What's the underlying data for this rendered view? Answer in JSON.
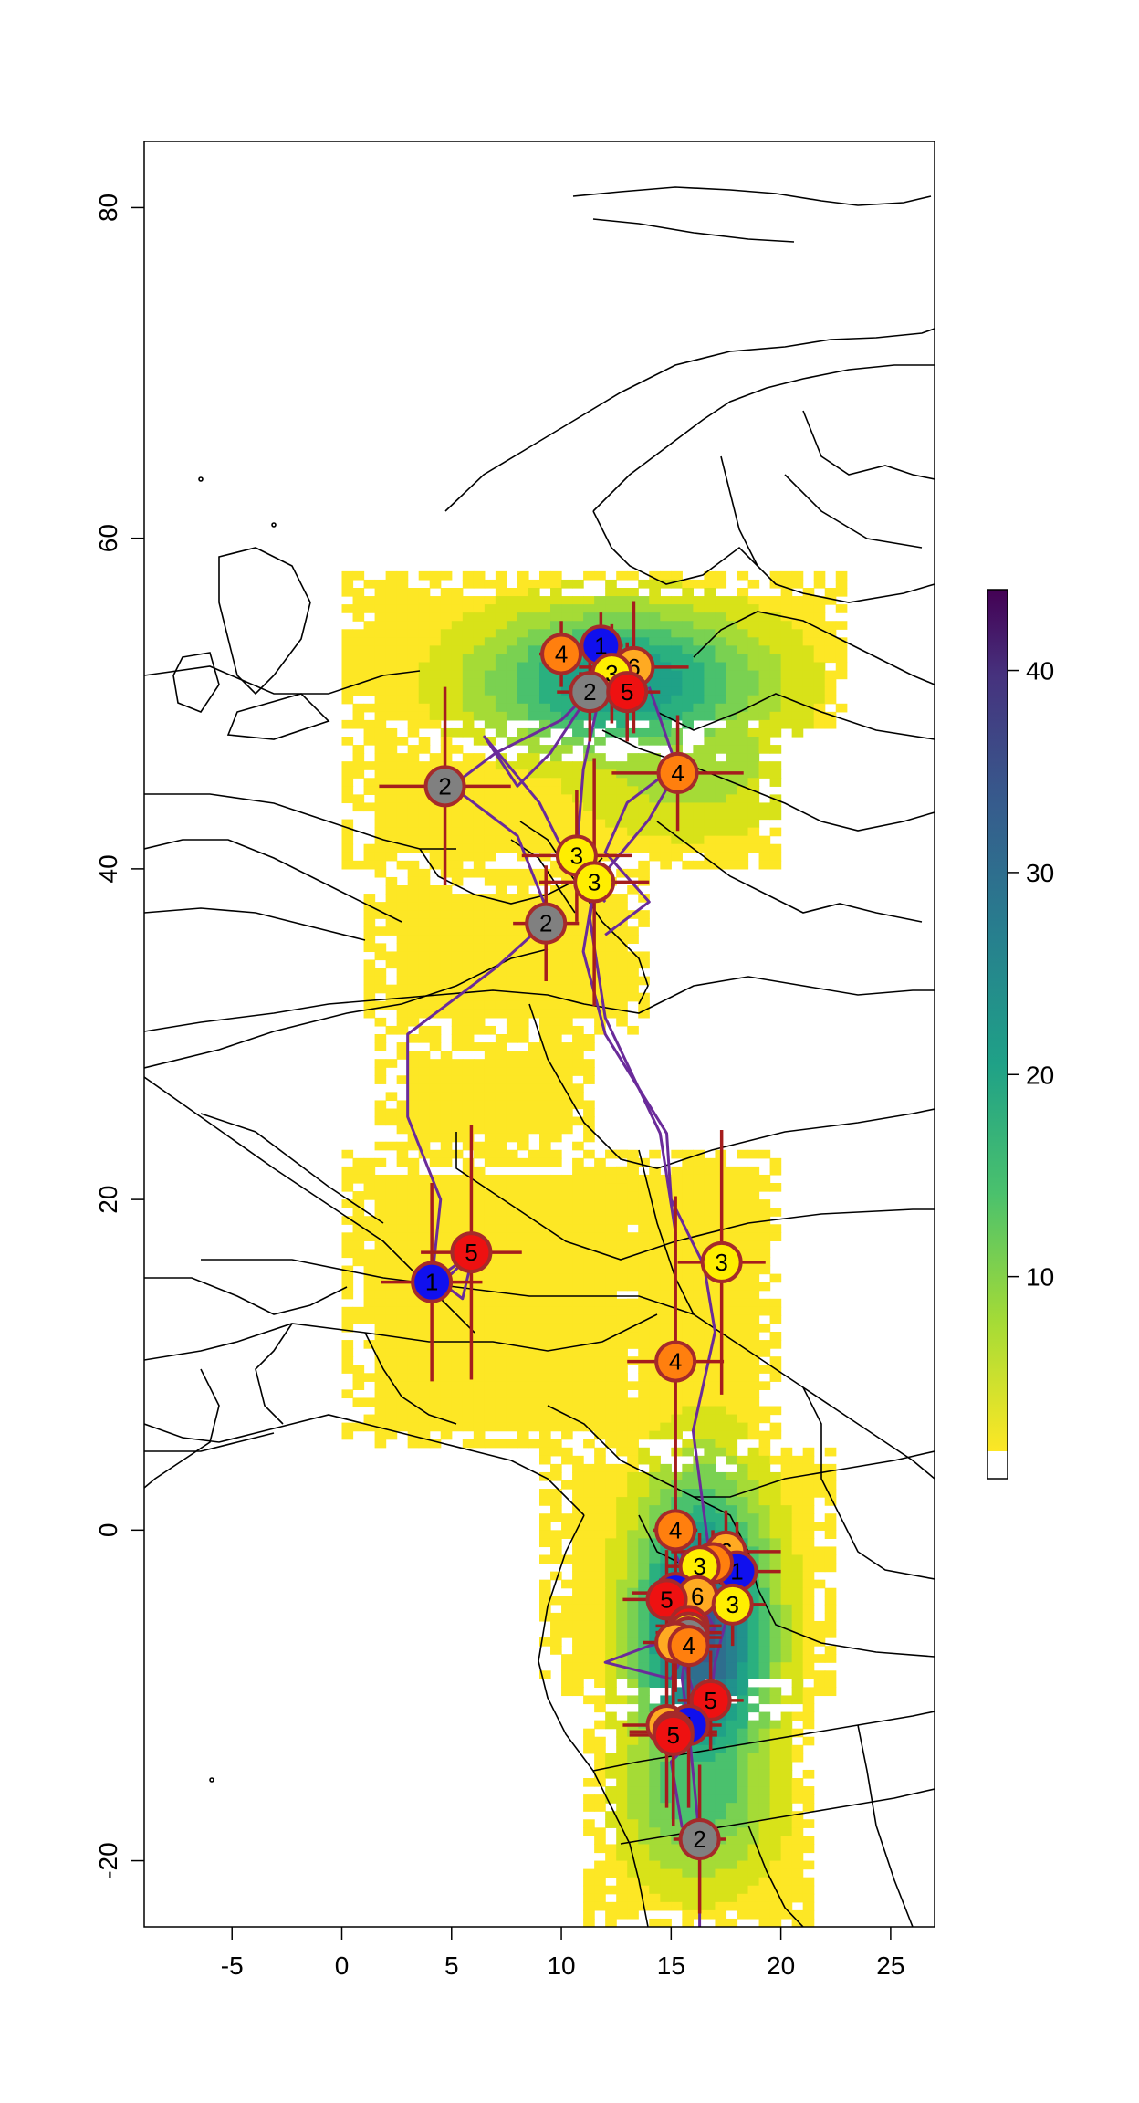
{
  "colors": {
    "track": "#6a2b9a",
    "error_bar": "#a51d1d",
    "marker_outline": "#a52a2a",
    "coast": "#000000",
    "background": "#ffffff"
  },
  "chart_data": {
    "type": "map",
    "xlim": [
      -9,
      27
    ],
    "ylim": [
      -24,
      84
    ],
    "x_ticks": [
      -5,
      0,
      5,
      10,
      15,
      20,
      25
    ],
    "y_ticks": [
      -20,
      0,
      20,
      40,
      60,
      80
    ],
    "legend": {
      "position": "right",
      "min": 0,
      "max": 44,
      "ticks": [
        10,
        20,
        30,
        40
      ],
      "palette": "viridis-reversed"
    },
    "marker_colors": {
      "1": "#1010ee",
      "2": "#808080",
      "3": "#ffee00",
      "4": "#ff7f0e",
      "5": "#ee1111",
      "6": "#ffaa22"
    },
    "stopovers": [
      {
        "label": "4",
        "lon": 10.0,
        "lat": 53.0,
        "xerr": 1.0,
        "yerr": 2.0
      },
      {
        "label": "1",
        "lon": 11.8,
        "lat": 53.5,
        "xerr": 1.0,
        "yerr": 2.0
      },
      {
        "label": "6",
        "lon": 13.3,
        "lat": 52.2,
        "xerr": 2.5,
        "yerr": 4.0
      },
      {
        "label": "3",
        "lon": 12.3,
        "lat": 51.8,
        "xerr": 1.5,
        "yerr": 3.0
      },
      {
        "label": "2",
        "lon": 11.3,
        "lat": 50.7,
        "xerr": 1.5,
        "yerr": 3.0
      },
      {
        "label": "5",
        "lon": 13.0,
        "lat": 50.7,
        "xerr": 1.5,
        "yerr": 3.0
      },
      {
        "label": "4",
        "lon": 15.3,
        "lat": 45.8,
        "xerr": 3.0,
        "yerr": 3.5
      },
      {
        "label": "2",
        "lon": 4.7,
        "lat": 45.0,
        "xerr": 3.0,
        "yerr": 6.0
      },
      {
        "label": "3",
        "lon": 10.7,
        "lat": 40.8,
        "xerr": 2.5,
        "yerr": 4.0
      },
      {
        "label": "3",
        "lon": 11.5,
        "lat": 39.2,
        "xerr": 2.5,
        "yerr": 7.5
      },
      {
        "label": "2",
        "lon": 9.3,
        "lat": 36.7,
        "xerr": 1.5,
        "yerr": 3.5
      },
      {
        "label": "5",
        "lon": 5.9,
        "lat": 16.8,
        "xerr": 2.3,
        "yerr": 7.7
      },
      {
        "label": "1",
        "lon": 4.1,
        "lat": 15.0,
        "xerr": 2.3,
        "yerr": 6.0
      },
      {
        "label": "3",
        "lon": 17.3,
        "lat": 16.2,
        "xerr": 2.0,
        "yerr": 8.0
      },
      {
        "label": "4",
        "lon": 15.2,
        "lat": 10.2,
        "xerr": 2.2,
        "yerr": 10.0
      },
      {
        "label": "4",
        "lon": 15.2,
        "lat": 0.0,
        "xerr": 1.0,
        "yerr": 1.5
      },
      {
        "label": "6",
        "lon": 17.5,
        "lat": -1.3,
        "xerr": 2.5,
        "yerr": 2.5
      },
      {
        "label": "1",
        "lon": 18.0,
        "lat": -2.5,
        "xerr": 2.0,
        "yerr": 3.0
      },
      {
        "label": "4",
        "lon": 16.9,
        "lat": -2.0,
        "xerr": 1.5,
        "yerr": 2.0
      },
      {
        "label": "3",
        "lon": 16.3,
        "lat": -2.2,
        "xerr": 1.5,
        "yerr": 2.0
      },
      {
        "label": "1",
        "lon": 15.2,
        "lat": -3.8,
        "xerr": 2.0,
        "yerr": 3.0
      },
      {
        "label": "6",
        "lon": 16.2,
        "lat": -4.0,
        "xerr": 1.5,
        "yerr": 2.0
      },
      {
        "label": "5",
        "lon": 14.8,
        "lat": -4.2,
        "xerr": 2.0,
        "yerr": 3.0
      },
      {
        "label": "3",
        "lon": 17.8,
        "lat": -4.5,
        "xerr": 1.5,
        "yerr": 2.5
      },
      {
        "label": "5",
        "lon": 15.8,
        "lat": -5.8,
        "xerr": 1.5,
        "yerr": 3.0
      },
      {
        "label": "3",
        "lon": 15.8,
        "lat": -6.2,
        "xerr": 1.5,
        "yerr": 3.0
      },
      {
        "label": "2",
        "lon": 15.8,
        "lat": -6.5,
        "xerr": 1.5,
        "yerr": 3.0
      },
      {
        "label": "6",
        "lon": 15.2,
        "lat": -6.8,
        "xerr": 1.5,
        "yerr": 3.0
      },
      {
        "label": "4",
        "lon": 15.8,
        "lat": -7.0,
        "xerr": 1.5,
        "yerr": 3.0
      },
      {
        "label": "5",
        "lon": 16.8,
        "lat": -10.3,
        "xerr": 1.5,
        "yerr": 3.0
      },
      {
        "label": "6",
        "lon": 14.8,
        "lat": -11.8,
        "xerr": 2.0,
        "yerr": 5.0
      },
      {
        "label": "1",
        "lon": 15.8,
        "lat": -11.8,
        "xerr": 1.5,
        "yerr": 5.0
      },
      {
        "label": "2",
        "lon": 15.1,
        "lat": -12.2,
        "xerr": 2.0,
        "yerr": 5.5
      },
      {
        "label": "5",
        "lon": 15.1,
        "lat": -12.4,
        "xerr": 2.0,
        "yerr": 5.5
      },
      {
        "label": "2",
        "lon": 16.3,
        "lat": -18.7,
        "xerr": 1.2,
        "yerr": 4.5
      }
    ]
  }
}
